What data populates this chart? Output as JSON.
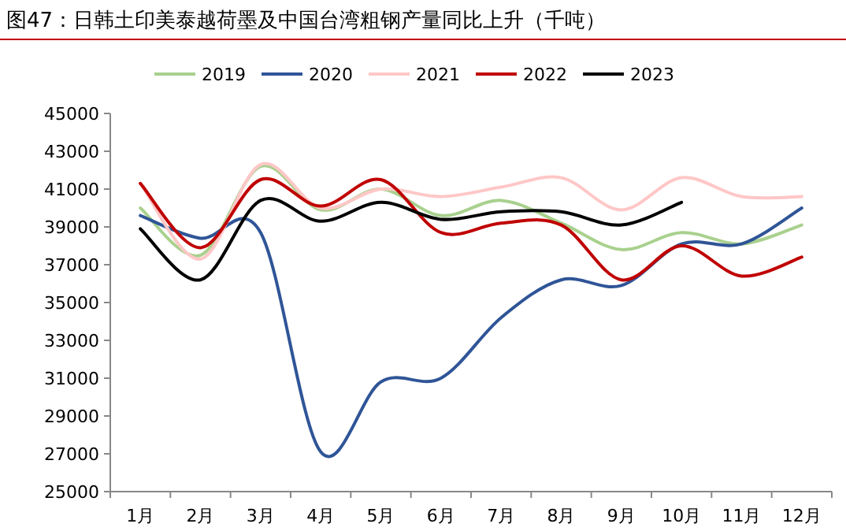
{
  "chart_data": {
    "type": "line",
    "title": "图47：日韩土印美泰越荷墨及中国台湾粗钢产量同比上升（千吨）",
    "categories": [
      "1月",
      "2月",
      "3月",
      "4月",
      "5月",
      "6月",
      "7月",
      "8月",
      "9月",
      "10月",
      "11月",
      "12月"
    ],
    "series": [
      {
        "name": "2019",
        "color": "#a9d18e",
        "values": [
          40000,
          37500,
          42200,
          39900,
          41000,
          39600,
          40400,
          39200,
          37800,
          38700,
          38100,
          39100
        ]
      },
      {
        "name": "2020",
        "color": "#2f5597",
        "values": [
          39600,
          38400,
          38700,
          27100,
          30800,
          31000,
          34200,
          36200,
          35900,
          38100,
          38100,
          40000
        ]
      },
      {
        "name": "2021",
        "color": "#ffc7c7",
        "values": [
          41300,
          37300,
          42300,
          40000,
          41000,
          40600,
          41100,
          41600,
          39900,
          41600,
          40600,
          40600
        ]
      },
      {
        "name": "2022",
        "color": "#c00000",
        "values": [
          41300,
          37900,
          41500,
          40100,
          41500,
          38700,
          39200,
          39100,
          36200,
          38000,
          36400,
          37400
        ]
      },
      {
        "name": "2023",
        "color": "#000000",
        "values": [
          38900,
          36200,
          40400,
          39300,
          40300,
          39400,
          39800,
          39800,
          39100,
          40300,
          null,
          null
        ]
      }
    ],
    "ylim": [
      25000,
      45000
    ],
    "yticks": [
      25000,
      27000,
      29000,
      31000,
      33000,
      35000,
      37000,
      39000,
      41000,
      43000,
      45000
    ],
    "grid": false,
    "legend": "top",
    "marker": "none",
    "line_style": "solid"
  }
}
